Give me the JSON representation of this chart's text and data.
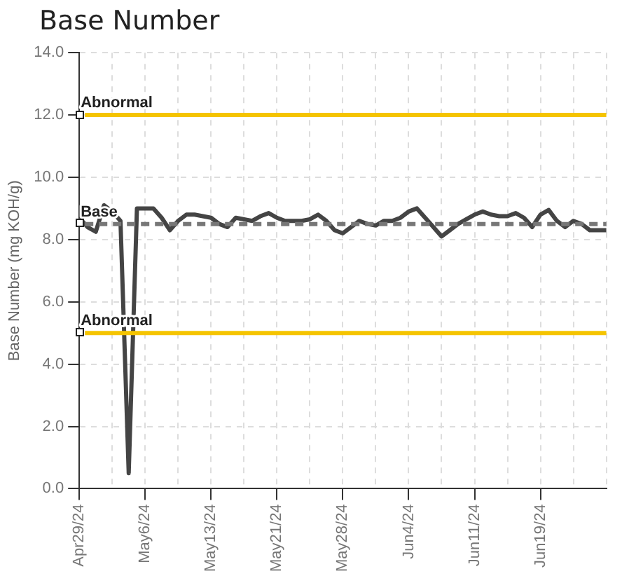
{
  "chart_data": {
    "type": "line",
    "title": "Base Number",
    "ylabel": "Base Number (mg KOH/g)",
    "categories": [
      "Apr29/24",
      null,
      null,
      null,
      null,
      null,
      null,
      null,
      "May6/24",
      null,
      null,
      null,
      null,
      null,
      null,
      null,
      "May13/24",
      null,
      null,
      null,
      null,
      null,
      null,
      null,
      "May21/24",
      null,
      null,
      null,
      null,
      null,
      null,
      null,
      "May28/24",
      null,
      null,
      null,
      null,
      null,
      null,
      null,
      "Jun4/24",
      null,
      null,
      null,
      null,
      null,
      null,
      null,
      "Jun11/24",
      null,
      null,
      null,
      null,
      null,
      null,
      null,
      "Jun19/24",
      null,
      null,
      null,
      null,
      null,
      null,
      null,
      null
    ],
    "series": [
      {
        "color": "#444444",
        "values": [
          8.7,
          8.4,
          8.25,
          9.1,
          8.9,
          8.6,
          0.5,
          9.0,
          9.0,
          9.0,
          8.7,
          8.3,
          8.6,
          8.8,
          8.8,
          8.75,
          8.7,
          8.5,
          8.4,
          8.7,
          8.65,
          8.6,
          8.75,
          8.85,
          8.7,
          8.6,
          8.6,
          8.6,
          8.65,
          8.8,
          8.6,
          8.3,
          8.2,
          8.4,
          8.6,
          8.5,
          8.45,
          8.6,
          8.6,
          8.7,
          8.9,
          9.0,
          8.7,
          8.4,
          8.1,
          8.3,
          8.5,
          8.65,
          8.8,
          8.9,
          8.8,
          8.75,
          8.75,
          8.85,
          8.7,
          8.4,
          8.8,
          8.95,
          8.6,
          8.4,
          8.6,
          8.5,
          8.3,
          8.3,
          8.3
        ]
      }
    ],
    "ylim": [
      0,
      14
    ],
    "yticks": [
      {
        "value": 0,
        "label": "0.0"
      },
      {
        "value": 2,
        "label": "2.0"
      },
      {
        "value": 4,
        "label": "4.0"
      },
      {
        "value": 6,
        "label": "6.0"
      },
      {
        "value": 8,
        "label": "8.0"
      },
      {
        "value": 10,
        "label": "10.0"
      },
      {
        "value": 12,
        "label": "12.0"
      },
      {
        "value": 14,
        "label": "14.0"
      }
    ],
    "ref_lines": [
      {
        "axis": "y",
        "value": 12,
        "label": "Abnormal",
        "color": "#f5c400",
        "line_style": "solid"
      },
      {
        "axis": "y",
        "value": 8.5,
        "label": "Base",
        "color": "#777777",
        "line_style": "dashed"
      },
      {
        "axis": "y",
        "value": 5,
        "label": "Abnormal",
        "color": "#f5c400",
        "line_style": "solid"
      }
    ],
    "grid": true,
    "legend": false,
    "marker": "none",
    "line_style": "solid"
  }
}
